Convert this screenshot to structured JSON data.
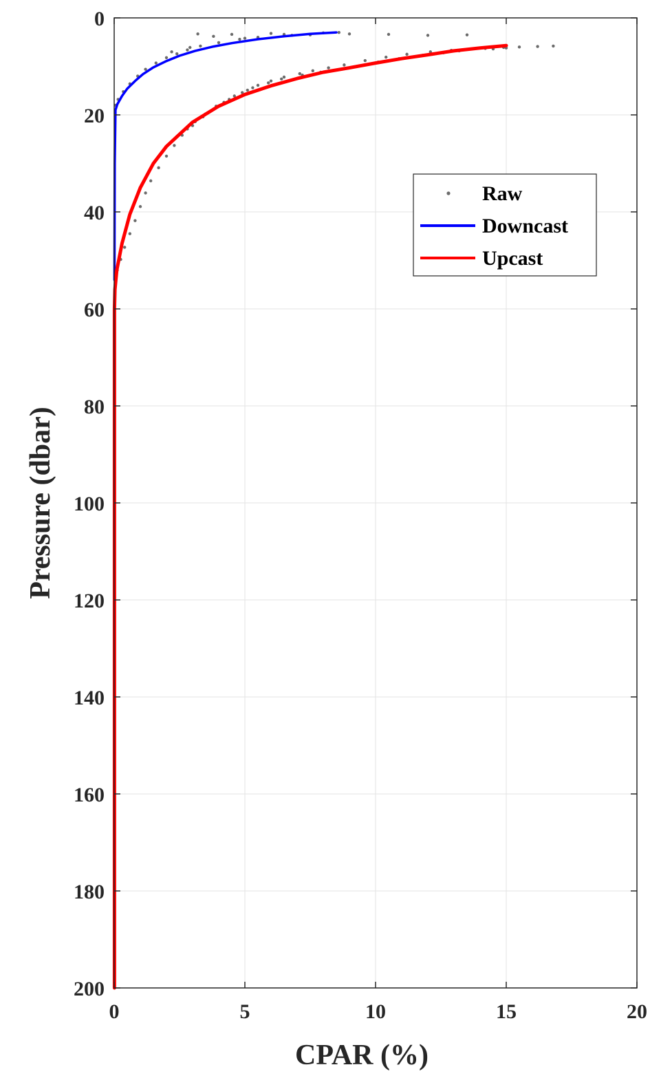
{
  "chart_data": {
    "type": "line",
    "xlabel": "CPAR (%)",
    "ylabel": "Pressure (dbar)",
    "xlim": [
      0,
      20
    ],
    "ylim": [
      0,
      200
    ],
    "y_reversed": true,
    "grid": true,
    "legend_position": "upper-right",
    "x_ticks": [
      0,
      5,
      10,
      15,
      20
    ],
    "y_ticks": [
      0,
      20,
      40,
      60,
      80,
      100,
      120,
      140,
      160,
      180,
      200
    ],
    "x_tick_labels": [
      "0",
      "5",
      "10",
      "15",
      "20"
    ],
    "y_tick_labels": [
      "0",
      "20",
      "40",
      "60",
      "80",
      "100",
      "120",
      "140",
      "160",
      "180",
      "200"
    ],
    "series": [
      {
        "name": "Raw",
        "style": "markers",
        "color": "#6b6b6b",
        "x": [
          16.8,
          16.2,
          15.5,
          14.9,
          14.2,
          13.5,
          12.9,
          12.1,
          11.2,
          10.4,
          9.6,
          8.8,
          8.2,
          7.6,
          7.1,
          6.5,
          6.0,
          5.5,
          5.1,
          4.6,
          4.2,
          3.8,
          3.4,
          3.0,
          2.6,
          2.3,
          2.0,
          1.7,
          1.4,
          1.2,
          1.0,
          0.8,
          0.6,
          0.4,
          0.25,
          0.12,
          0.05,
          15.0,
          14.5,
          13.2,
          12.6,
          11.8,
          10.9,
          10.1,
          9.3,
          8.4,
          7.9,
          7.2,
          6.4,
          5.9,
          5.3,
          4.9,
          4.4,
          3.9,
          3.5,
          3.1,
          2.8,
          3.2,
          4.5,
          6.0,
          7.5,
          9.0,
          10.5,
          12.0,
          13.5,
          8.6,
          6.5,
          5.0,
          4.0,
          3.3,
          2.8,
          2.4,
          2.0,
          1.6,
          1.2,
          0.9,
          0.6,
          0.35,
          0.15,
          0.05,
          3.8,
          4.8,
          5.5,
          6.8,
          8.0,
          2.9,
          2.2
        ],
        "y": [
          5.8,
          5.9,
          6.0,
          6.1,
          6.3,
          6.5,
          6.7,
          7.0,
          7.5,
          8.1,
          8.8,
          9.7,
          10.3,
          10.9,
          11.5,
          12.2,
          13.0,
          13.9,
          14.9,
          16.1,
          17.4,
          18.8,
          20.4,
          22.2,
          24.2,
          26.3,
          28.5,
          30.9,
          33.6,
          36.1,
          38.9,
          41.8,
          44.5,
          47.3,
          49.8,
          52.0,
          54.0,
          6.2,
          6.4,
          6.8,
          7.2,
          7.7,
          8.4,
          9.1,
          10.0,
          10.8,
          11.2,
          11.8,
          12.6,
          13.4,
          14.4,
          15.4,
          16.8,
          18.2,
          19.8,
          21.4,
          22.9,
          3.3,
          3.4,
          3.2,
          3.5,
          3.3,
          3.4,
          3.6,
          3.5,
          3.0,
          3.4,
          4.2,
          5.1,
          5.8,
          6.6,
          7.4,
          8.2,
          9.3,
          10.6,
          12.0,
          13.6,
          15.2,
          16.8,
          18.0,
          3.8,
          4.4,
          4.0,
          3.6,
          3.1,
          6.1,
          7.0
        ]
      },
      {
        "name": "Downcast",
        "style": "line",
        "color": "#0000ff",
        "x": [
          8.5,
          7.5,
          6.5,
          5.5,
          4.5,
          3.8,
          3.1,
          2.5,
          2.0,
          1.5,
          1.1,
          0.8,
          0.5,
          0.3,
          0.12,
          0.05,
          0.02,
          0.01
        ],
        "y": [
          3.0,
          3.3,
          3.8,
          4.4,
          5.2,
          5.9,
          6.8,
          7.8,
          8.9,
          10.2,
          11.6,
          13.0,
          14.6,
          16.1,
          17.8,
          19.0,
          30.0,
          54.0
        ]
      },
      {
        "name": "Upcast",
        "style": "line",
        "color": "#ff0000",
        "x": [
          15.0,
          14.0,
          13.0,
          12.0,
          11.0,
          10.0,
          9.0,
          8.0,
          7.0,
          6.0,
          5.0,
          4.0,
          3.0,
          2.0,
          1.5,
          1.0,
          0.6,
          0.3,
          0.1,
          0.03,
          0.01,
          0.01
        ],
        "y": [
          5.7,
          6.2,
          6.8,
          7.6,
          8.4,
          9.3,
          10.3,
          11.2,
          12.5,
          14.0,
          15.8,
          18.2,
          21.5,
          26.5,
          30.0,
          35.0,
          40.5,
          46.5,
          52.0,
          56.0,
          60.0,
          200.0
        ]
      }
    ]
  }
}
